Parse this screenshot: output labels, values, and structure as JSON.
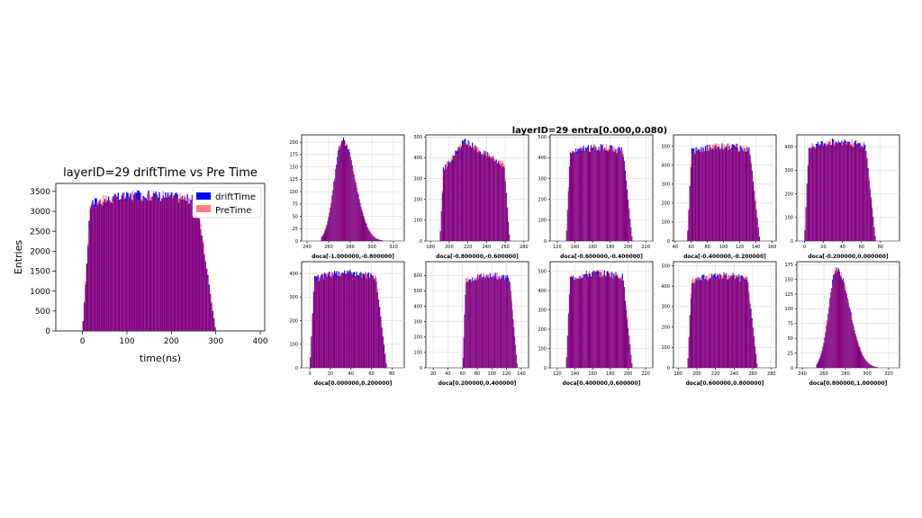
{
  "colors": {
    "drift": "#0000ff",
    "pre": "#ff7f7f",
    "overlap": "#800080",
    "grid": "#d9d9d9",
    "axis": "#000000"
  },
  "main": {
    "title": "layerID=29 driftTime vs Pre Time",
    "legend": [
      "driftTime",
      "PreTime"
    ]
  },
  "grid_title": "layerID=29 entra[0.000,0.080)",
  "chart_data": [
    {
      "type": "bar",
      "title": "layerID=29 driftTime vs Pre Time",
      "xlabel": "time(ns)",
      "ylabel": "Entries",
      "xlim": [
        -60,
        410
      ],
      "ylim": [
        0,
        3700
      ],
      "xticks": [
        0,
        100,
        200,
        300,
        400
      ],
      "yticks": [
        0,
        500,
        1000,
        1500,
        2000,
        2500,
        3000,
        3500
      ],
      "grid": false,
      "legend": "top-right",
      "series": [
        {
          "name": "driftTime",
          "shape": "plateau",
          "x_start": 0,
          "x_end": 300,
          "peak": 3400
        },
        {
          "name": "PreTime",
          "shape": "plateau",
          "x_start": 0,
          "x_end": 300,
          "peak": 3400
        }
      ]
    },
    {
      "type": "bar",
      "xlabel": "doca[-1.000000,-0.800000]",
      "xlim": [
        235,
        330
      ],
      "ylim": [
        0,
        215
      ],
      "xticks": [
        240,
        260,
        280,
        300,
        320
      ],
      "yticks": [
        0,
        25,
        50,
        75,
        100,
        125,
        150,
        175,
        200
      ],
      "grid": true,
      "series": [
        {
          "name": "driftTime",
          "shape": "peak",
          "x_start": 253,
          "x_mode": 273,
          "x_end": 310,
          "peak": 205
        }
      ]
    },
    {
      "type": "bar",
      "xlabel": "doca[-0.800000,-0.600000]",
      "xlim": [
        175,
        285
      ],
      "ylim": [
        0,
        510
      ],
      "xticks": [
        180,
        200,
        220,
        240,
        260,
        280
      ],
      "yticks": [
        0,
        100,
        200,
        300,
        400,
        500
      ],
      "grid": true,
      "series": [
        {
          "name": "driftTime",
          "shape": "slope",
          "x_start": 190,
          "x_end": 265,
          "start_level": 320,
          "peak": 480,
          "end_level": 350
        }
      ]
    },
    {
      "type": "bar",
      "xlabel": "doca[-0.600000,-0.400000]",
      "xlim": [
        112,
        228
      ],
      "ylim": [
        0,
        510
      ],
      "xticks": [
        120,
        140,
        160,
        180,
        200,
        220
      ],
      "yticks": [
        0,
        100,
        200,
        300,
        400,
        500
      ],
      "grid": true,
      "series": [
        {
          "name": "driftTime",
          "shape": "plateau",
          "x_start": 130,
          "x_end": 205,
          "peak": 450
        }
      ]
    },
    {
      "type": "bar",
      "xlabel": "doca[-0.400000,-0.200000]",
      "xlim": [
        38,
        165
      ],
      "ylim": [
        0,
        560
      ],
      "xticks": [
        40,
        60,
        80,
        100,
        120,
        140,
        160
      ],
      "yticks": [
        0,
        100,
        200,
        300,
        400,
        500
      ],
      "grid": true,
      "series": [
        {
          "name": "driftTime",
          "shape": "plateau",
          "x_start": 55,
          "x_end": 145,
          "peak": 500
        }
      ]
    },
    {
      "type": "bar",
      "xlabel": "doca[-0.200000,0.000000]",
      "xlim": [
        -8,
        100
      ],
      "ylim": [
        0,
        450
      ],
      "xticks": [
        0,
        20,
        40,
        60,
        80
      ],
      "yticks": [
        0,
        100,
        200,
        300,
        400
      ],
      "grid": true,
      "series": [
        {
          "name": "driftTime",
          "shape": "plateau",
          "x_start": 0,
          "x_end": 75,
          "peak": 420
        }
      ]
    },
    {
      "type": "bar",
      "xlabel": "doca[0.000000,0.200000]",
      "xlim": [
        -8,
        92
      ],
      "ylim": [
        0,
        450
      ],
      "xticks": [
        0,
        20,
        40,
        60,
        80
      ],
      "yticks": [
        0,
        100,
        200,
        300,
        400
      ],
      "grid": true,
      "series": [
        {
          "name": "driftTime",
          "shape": "plateau",
          "x_start": 0,
          "x_end": 75,
          "peak": 400
        }
      ]
    },
    {
      "type": "bar",
      "xlabel": "doca[0.200000,0.400000]",
      "xlim": [
        10,
        150
      ],
      "ylim": [
        0,
        690
      ],
      "xticks": [
        20,
        40,
        60,
        80,
        100,
        120,
        140
      ],
      "yticks": [
        0,
        100,
        200,
        300,
        400,
        500,
        600
      ],
      "grid": true,
      "series": [
        {
          "name": "driftTime",
          "shape": "plateau",
          "x_start": 60,
          "x_end": 135,
          "peak": 600
        }
      ]
    },
    {
      "type": "bar",
      "xlabel": "doca[0.400000,0.600000]",
      "xlim": [
        112,
        228
      ],
      "ylim": [
        0,
        550
      ],
      "xticks": [
        120,
        140,
        160,
        180,
        200,
        220
      ],
      "yticks": [
        0,
        100,
        200,
        300,
        400,
        500
      ],
      "grid": true,
      "series": [
        {
          "name": "driftTime",
          "shape": "plateau",
          "x_start": 130,
          "x_end": 205,
          "peak": 490
        }
      ]
    },
    {
      "type": "bar",
      "xlabel": "doca[0.600000,0.800000]",
      "xlim": [
        175,
        285
      ],
      "ylim": [
        0,
        520
      ],
      "xticks": [
        180,
        200,
        220,
        240,
        260,
        280
      ],
      "yticks": [
        0,
        100,
        200,
        300,
        400,
        500
      ],
      "grid": true,
      "series": [
        {
          "name": "driftTime",
          "shape": "plateau",
          "x_start": 190,
          "x_end": 265,
          "peak": 450
        }
      ]
    },
    {
      "type": "bar",
      "xlabel": "doca[0.800000,1.000000]",
      "xlim": [
        235,
        330
      ],
      "ylim": [
        0,
        180
      ],
      "xticks": [
        240,
        260,
        280,
        300,
        320
      ],
      "yticks": [
        0,
        25,
        50,
        75,
        100,
        125,
        150,
        175
      ],
      "grid": true,
      "series": [
        {
          "name": "driftTime",
          "shape": "peak",
          "x_start": 253,
          "x_mode": 272,
          "x_end": 310,
          "peak": 168
        }
      ]
    }
  ]
}
